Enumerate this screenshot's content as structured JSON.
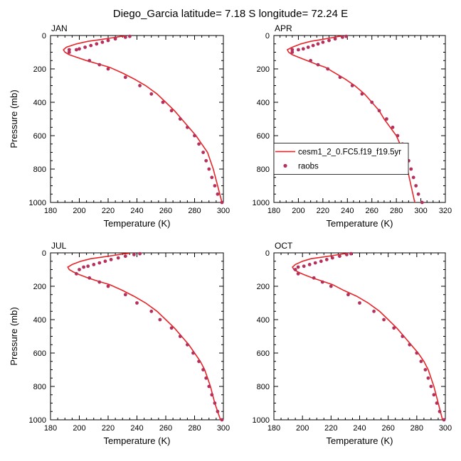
{
  "title": "Diego_Garcia  latitude= 7.18 S longitude= 72.24 E",
  "colors": {
    "model": "#e8262a",
    "obs": "#b5305a",
    "axis": "#000000"
  },
  "chart_data": [
    {
      "type": "line",
      "panel_label": "JAN",
      "xlabel": "Temperature (K)",
      "ylabel": "Pressure (mb)",
      "xlim": [
        180,
        300
      ],
      "ylim": [
        1000,
        0
      ],
      "xticks": [
        "180",
        "200",
        "220",
        "240",
        "260",
        "280",
        "300"
      ],
      "yticks": [
        "0",
        "200",
        "400",
        "600",
        "800",
        "1000"
      ],
      "legend": null,
      "series": [
        {
          "kind": "line",
          "x": [
            232,
            228,
            222,
            214,
            206,
            198,
            191,
            189,
            190,
            193,
            198,
            205,
            213,
            221,
            230,
            238,
            246,
            254,
            260,
            266,
            271,
            276,
            281,
            285,
            289,
            293,
            296,
            299
          ],
          "y": [
            3,
            7,
            15,
            25,
            35,
            50,
            70,
            85,
            100,
            115,
            130,
            150,
            170,
            190,
            225,
            260,
            300,
            350,
            400,
            450,
            500,
            550,
            600,
            650,
            700,
            800,
            900,
            1000
          ]
        },
        {
          "kind": "scatter",
          "x": [
            235,
            232,
            225,
            220,
            216,
            212,
            208,
            204,
            200,
            198,
            193,
            193,
            207,
            214,
            220,
            232,
            242,
            250,
            258,
            264,
            270,
            275,
            280,
            283,
            286,
            288,
            290,
            292,
            294,
            296,
            299
          ],
          "y": [
            5,
            10,
            20,
            30,
            40,
            50,
            60,
            70,
            80,
            85,
            85,
            100,
            150,
            175,
            200,
            250,
            300,
            350,
            400,
            450,
            500,
            550,
            600,
            650,
            700,
            750,
            800,
            850,
            900,
            950,
            1000
          ]
        }
      ]
    },
    {
      "type": "line",
      "panel_label": "APR",
      "xlabel": "Temperature (K)",
      "ylabel": "",
      "xlim": [
        180,
        320
      ],
      "ylim": [
        1000,
        0
      ],
      "xticks": [
        "180",
        "200",
        "220",
        "240",
        "260",
        "280",
        "300",
        "320"
      ],
      "yticks": [
        "0",
        "200",
        "400",
        "600",
        "800",
        "1000"
      ],
      "legend": {
        "position": "bottom-left",
        "items": [
          "cesm1_2_0.FC5.f19_f19.5yr",
          "raobs"
        ]
      },
      "series": [
        {
          "kind": "line",
          "x": [
            236,
            232,
            226,
            218,
            210,
            202,
            195,
            191,
            192,
            195,
            200,
            207,
            214,
            222,
            230,
            238,
            246,
            254,
            260,
            266,
            270,
            275,
            280,
            283,
            286,
            289,
            292,
            295
          ],
          "y": [
            3,
            7,
            15,
            25,
            35,
            50,
            70,
            85,
            100,
            115,
            130,
            150,
            170,
            190,
            225,
            260,
            300,
            350,
            400,
            450,
            500,
            550,
            600,
            650,
            700,
            800,
            900,
            1000
          ]
        },
        {
          "kind": "scatter",
          "x": [
            239,
            236,
            230,
            225,
            220,
            216,
            212,
            208,
            204,
            200,
            195,
            195,
            210,
            216,
            224,
            234,
            244,
            252,
            260,
            266,
            272,
            277,
            281,
            285,
            288,
            290,
            292,
            294,
            296,
            298,
            301
          ],
          "y": [
            5,
            10,
            20,
            30,
            40,
            50,
            60,
            70,
            80,
            85,
            85,
            100,
            150,
            175,
            200,
            250,
            300,
            350,
            400,
            450,
            500,
            550,
            600,
            650,
            700,
            750,
            800,
            850,
            900,
            950,
            1000
          ]
        }
      ]
    },
    {
      "type": "line",
      "panel_label": "JUL",
      "xlabel": "Temperature (K)",
      "ylabel": "Pressure (mb)",
      "xlim": [
        180,
        300
      ],
      "ylim": [
        1000,
        0
      ],
      "xticks": [
        "180",
        "200",
        "220",
        "240",
        "260",
        "280",
        "300"
      ],
      "yticks": [
        "0",
        "200",
        "400",
        "600",
        "800",
        "1000"
      ],
      "legend": null,
      "series": [
        {
          "kind": "line",
          "x": [
            235,
            230,
            224,
            216,
            208,
            201,
            195,
            192,
            193,
            196,
            200,
            206,
            213,
            221,
            230,
            238,
            246,
            254,
            260,
            266,
            271,
            276,
            280,
            284,
            287,
            291,
            294,
            298
          ],
          "y": [
            3,
            7,
            15,
            25,
            35,
            50,
            70,
            85,
            100,
            115,
            130,
            150,
            170,
            190,
            225,
            260,
            300,
            350,
            400,
            450,
            500,
            550,
            600,
            650,
            700,
            800,
            900,
            1000
          ]
        },
        {
          "kind": "scatter",
          "x": [
            242,
            238,
            232,
            227,
            222,
            218,
            214,
            210,
            206,
            203,
            200,
            198,
            207,
            214,
            220,
            232,
            240,
            250,
            256,
            264,
            270,
            275,
            279,
            283,
            286,
            288,
            290,
            292,
            294,
            296,
            299
          ],
          "y": [
            5,
            10,
            20,
            30,
            40,
            50,
            60,
            70,
            80,
            85,
            100,
            125,
            150,
            175,
            200,
            250,
            300,
            350,
            400,
            450,
            500,
            550,
            600,
            650,
            700,
            750,
            800,
            850,
            900,
            950,
            1000
          ]
        }
      ]
    },
    {
      "type": "line",
      "panel_label": "OCT",
      "xlabel": "Temperature (K)",
      "ylabel": "",
      "xlim": [
        180,
        300
      ],
      "ylim": [
        1000,
        0
      ],
      "xticks": [
        "180",
        "200",
        "220",
        "240",
        "260",
        "280",
        "300"
      ],
      "yticks": [
        "0",
        "200",
        "400",
        "600",
        "800",
        "1000"
      ],
      "legend": null,
      "series": [
        {
          "kind": "line",
          "x": [
            232,
            228,
            222,
            214,
            206,
            200,
            195,
            193,
            194,
            197,
            201,
            207,
            214,
            221,
            229,
            238,
            246,
            254,
            260,
            266,
            271,
            276,
            281,
            285,
            288,
            292,
            295,
            298
          ],
          "y": [
            3,
            7,
            15,
            25,
            35,
            50,
            70,
            85,
            100,
            115,
            130,
            150,
            170,
            190,
            225,
            260,
            300,
            350,
            400,
            450,
            500,
            550,
            600,
            650,
            700,
            800,
            900,
            1000
          ]
        },
        {
          "kind": "scatter",
          "x": [
            234,
            231,
            226,
            221,
            217,
            213,
            209,
            205,
            201,
            197,
            195,
            197,
            208,
            214,
            220,
            232,
            240,
            250,
            257,
            264,
            270,
            275,
            280,
            283,
            286,
            288,
            290,
            292,
            294,
            296,
            299
          ],
          "y": [
            5,
            10,
            20,
            30,
            40,
            50,
            60,
            70,
            80,
            85,
            100,
            125,
            150,
            175,
            200,
            250,
            300,
            350,
            400,
            450,
            500,
            550,
            600,
            650,
            700,
            750,
            800,
            850,
            900,
            950,
            1000
          ]
        }
      ]
    }
  ]
}
